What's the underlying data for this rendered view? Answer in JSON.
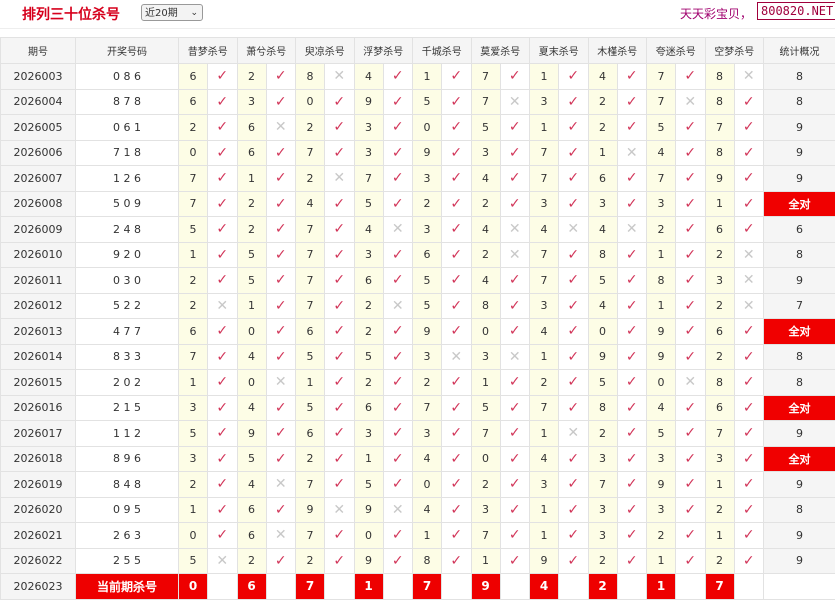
{
  "header": {
    "title": "排列三十位杀号",
    "period_select": "近20期",
    "brand_text": "天天彩宝贝，",
    "site": "800820.NET"
  },
  "columns": {
    "issue": "期号",
    "draw": "开奖号码",
    "killers": [
      "昔梦杀号",
      "萧兮杀号",
      "臾凉杀号",
      "浮梦杀号",
      "千城杀号",
      "莫爱杀号",
      "夏末杀号",
      "木槿杀号",
      "夸迷杀号",
      "空梦杀号"
    ],
    "stat": "统计概况"
  },
  "icons": {
    "hit": "check-icon",
    "miss": "cross-icon"
  },
  "colors": {
    "title": "#d6001c",
    "check": "#d2365a",
    "cross": "#c8c8c8",
    "all_correct": "#f00000",
    "number_bg": "#fdfde6"
  },
  "rows": [
    {
      "issue": "2026003",
      "draw": "0 8 6",
      "kills": [
        6,
        2,
        8,
        4,
        1,
        7,
        1,
        4,
        7,
        8
      ],
      "marks": [
        "✓",
        "✓",
        "✕",
        "✓",
        "✓",
        "✓",
        "✓",
        "✓",
        "✓",
        "✕"
      ],
      "stat": "8"
    },
    {
      "issue": "2026004",
      "draw": "8 7 8",
      "kills": [
        6,
        3,
        0,
        9,
        5,
        7,
        3,
        2,
        7,
        8
      ],
      "marks": [
        "✓",
        "✓",
        "✓",
        "✓",
        "✓",
        "✕",
        "✓",
        "✓",
        "✕",
        "✓"
      ],
      "stat": "8"
    },
    {
      "issue": "2026005",
      "draw": "0 6 1",
      "kills": [
        2,
        6,
        2,
        3,
        0,
        5,
        1,
        2,
        5,
        7
      ],
      "marks": [
        "✓",
        "✕",
        "✓",
        "✓",
        "✓",
        "✓",
        "✓",
        "✓",
        "✓",
        "✓"
      ],
      "stat": "9"
    },
    {
      "issue": "2026006",
      "draw": "7 1 8",
      "kills": [
        0,
        6,
        7,
        3,
        9,
        3,
        7,
        1,
        4,
        8
      ],
      "marks": [
        "✓",
        "✓",
        "✓",
        "✓",
        "✓",
        "✓",
        "✓",
        "✕",
        "✓",
        "✓"
      ],
      "stat": "9"
    },
    {
      "issue": "2026007",
      "draw": "1 2 6",
      "kills": [
        7,
        1,
        2,
        7,
        3,
        4,
        7,
        6,
        7,
        9
      ],
      "marks": [
        "✓",
        "✓",
        "✕",
        "✓",
        "✓",
        "✓",
        "✓",
        "✓",
        "✓",
        "✓"
      ],
      "stat": "9"
    },
    {
      "issue": "2026008",
      "draw": "5 0 9",
      "kills": [
        7,
        2,
        4,
        5,
        2,
        2,
        3,
        3,
        3,
        1
      ],
      "marks": [
        "✓",
        "✓",
        "✓",
        "✓",
        "✓",
        "✓",
        "✓",
        "✓",
        "✓",
        "✓"
      ],
      "stat": "全对"
    },
    {
      "issue": "2026009",
      "draw": "2 4 8",
      "kills": [
        5,
        2,
        7,
        4,
        3,
        4,
        4,
        4,
        2,
        6
      ],
      "marks": [
        "✓",
        "✓",
        "✓",
        "✕",
        "✓",
        "✕",
        "✕",
        "✕",
        "✓",
        "✓"
      ],
      "stat": "6"
    },
    {
      "issue": "2026010",
      "draw": "9 2 0",
      "kills": [
        1,
        5,
        7,
        3,
        6,
        2,
        7,
        8,
        1,
        2
      ],
      "marks": [
        "✓",
        "✓",
        "✓",
        "✓",
        "✓",
        "✕",
        "✓",
        "✓",
        "✓",
        "✕"
      ],
      "stat": "8"
    },
    {
      "issue": "2026011",
      "draw": "0 3 0",
      "kills": [
        2,
        5,
        7,
        6,
        5,
        4,
        7,
        5,
        8,
        3
      ],
      "marks": [
        "✓",
        "✓",
        "✓",
        "✓",
        "✓",
        "✓",
        "✓",
        "✓",
        "✓",
        "✕"
      ],
      "stat": "9"
    },
    {
      "issue": "2026012",
      "draw": "5 2 2",
      "kills": [
        2,
        1,
        7,
        2,
        5,
        8,
        3,
        4,
        1,
        2
      ],
      "marks": [
        "✕",
        "✓",
        "✓",
        "✕",
        "✓",
        "✓",
        "✓",
        "✓",
        "✓",
        "✕"
      ],
      "stat": "7"
    },
    {
      "issue": "2026013",
      "draw": "4 7 7",
      "kills": [
        6,
        0,
        6,
        2,
        9,
        0,
        4,
        0,
        9,
        6
      ],
      "marks": [
        "✓",
        "✓",
        "✓",
        "✓",
        "✓",
        "✓",
        "✓",
        "✓",
        "✓",
        "✓"
      ],
      "stat": "全对"
    },
    {
      "issue": "2026014",
      "draw": "8 3 3",
      "kills": [
        7,
        4,
        5,
        5,
        3,
        3,
        1,
        9,
        9,
        2
      ],
      "marks": [
        "✓",
        "✓",
        "✓",
        "✓",
        "✕",
        "✕",
        "✓",
        "✓",
        "✓",
        "✓"
      ],
      "stat": "8"
    },
    {
      "issue": "2026015",
      "draw": "2 0 2",
      "kills": [
        1,
        0,
        1,
        2,
        2,
        1,
        2,
        5,
        0,
        8
      ],
      "marks": [
        "✓",
        "✕",
        "✓",
        "✓",
        "✓",
        "✓",
        "✓",
        "✓",
        "✕",
        "✓"
      ],
      "stat": "8"
    },
    {
      "issue": "2026016",
      "draw": "2 1 5",
      "kills": [
        3,
        4,
        5,
        6,
        7,
        5,
        7,
        8,
        4,
        6
      ],
      "marks": [
        "✓",
        "✓",
        "✓",
        "✓",
        "✓",
        "✓",
        "✓",
        "✓",
        "✓",
        "✓"
      ],
      "stat": "全对"
    },
    {
      "issue": "2026017",
      "draw": "1 1 2",
      "kills": [
        5,
        9,
        6,
        3,
        3,
        7,
        1,
        2,
        5,
        7
      ],
      "marks": [
        "✓",
        "✓",
        "✓",
        "✓",
        "✓",
        "✓",
        "✕",
        "✓",
        "✓",
        "✓"
      ],
      "stat": "9"
    },
    {
      "issue": "2026018",
      "draw": "8 9 6",
      "kills": [
        3,
        5,
        2,
        1,
        4,
        0,
        4,
        3,
        3,
        3
      ],
      "marks": [
        "✓",
        "✓",
        "✓",
        "✓",
        "✓",
        "✓",
        "✓",
        "✓",
        "✓",
        "✓"
      ],
      "stat": "全对"
    },
    {
      "issue": "2026019",
      "draw": "8 4 8",
      "kills": [
        2,
        4,
        7,
        5,
        0,
        2,
        3,
        7,
        9,
        1
      ],
      "marks": [
        "✓",
        "✕",
        "✓",
        "✓",
        "✓",
        "✓",
        "✓",
        "✓",
        "✓",
        "✓"
      ],
      "stat": "9"
    },
    {
      "issue": "2026020",
      "draw": "0 9 5",
      "kills": [
        1,
        6,
        9,
        9,
        4,
        3,
        1,
        3,
        3,
        2
      ],
      "marks": [
        "✓",
        "✓",
        "✕",
        "✕",
        "✓",
        "✓",
        "✓",
        "✓",
        "✓",
        "✓"
      ],
      "stat": "8"
    },
    {
      "issue": "2026021",
      "draw": "2 6 3",
      "kills": [
        0,
        6,
        7,
        0,
        1,
        7,
        1,
        3,
        2,
        1
      ],
      "marks": [
        "✓",
        "✕",
        "✓",
        "✓",
        "✓",
        "✓",
        "✓",
        "✓",
        "✓",
        "✓"
      ],
      "stat": "9"
    },
    {
      "issue": "2026022",
      "draw": "2 5 5",
      "kills": [
        5,
        2,
        2,
        9,
        8,
        1,
        9,
        2,
        1,
        2
      ],
      "marks": [
        "✕",
        "✓",
        "✓",
        "✓",
        "✓",
        "✓",
        "✓",
        "✓",
        "✓",
        "✓"
      ],
      "stat": "9"
    }
  ],
  "current": {
    "issue": "2026023",
    "label": "当前期杀号",
    "kills": [
      0,
      6,
      7,
      1,
      7,
      9,
      4,
      2,
      1,
      7
    ]
  }
}
